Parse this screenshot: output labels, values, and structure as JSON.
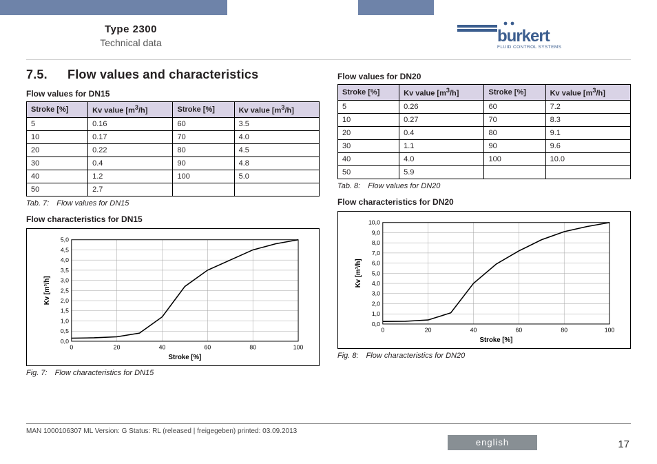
{
  "header": {
    "type_line": "Type 2300",
    "sub_line": "Technical data",
    "logo_text": "burkert",
    "logo_tagline": "FLUID CONTROL SYSTEMS",
    "logo_color": "#3c5e8f",
    "topbar_color": "#6e83a9"
  },
  "section": {
    "number": "7.5.",
    "title": "Flow values and characteristics"
  },
  "left": {
    "table_title": "Flow values for DN15",
    "headers": [
      "Stroke [%]",
      "Kv value [m³/h]",
      "Stroke [%]",
      "Kv value [m³/h]"
    ],
    "rows": [
      [
        "5",
        "0.16",
        "60",
        "3.5"
      ],
      [
        "10",
        "0.17",
        "70",
        "4.0"
      ],
      [
        "20",
        "0.22",
        "80",
        "4.5"
      ],
      [
        "30",
        "0.4",
        "90",
        "4.8"
      ],
      [
        "40",
        "1.2",
        "100",
        "5.0"
      ],
      [
        "50",
        "2.7",
        "",
        ""
      ]
    ],
    "table_caption": "Tab. 7: Flow values for DN15",
    "chart_title": "Flow characteristics for DN15",
    "chart": {
      "type": "line",
      "xlabel": "Stroke [%]",
      "ylabel": "Kv [m³/h]",
      "xlim": [
        0,
        100
      ],
      "xtick_step": 20,
      "ylim": [
        0,
        5.0
      ],
      "ytick_step": 0.5,
      "y_tick_labels": [
        "0,0",
        "0,5",
        "1,0",
        "1,5",
        "2,0",
        "2,5",
        "3,0",
        "3,5",
        "4,0",
        "4,5",
        "5,0"
      ],
      "x_tick_labels": [
        "0",
        "20",
        "40",
        "60",
        "80",
        "100"
      ],
      "series": {
        "x": [
          0,
          5,
          10,
          20,
          30,
          40,
          50,
          60,
          70,
          80,
          90,
          100
        ],
        "y": [
          0.15,
          0.16,
          0.17,
          0.22,
          0.4,
          1.2,
          2.7,
          3.5,
          4.0,
          4.5,
          4.8,
          5.0
        ]
      },
      "line_color": "#000000",
      "line_width": 1.6,
      "grid_color": "#a0a0a0",
      "background_color": "#ffffff",
      "label_fontsize": 10
    },
    "chart_caption": "Fig. 7: Flow characteristics for DN15"
  },
  "right": {
    "table_title": "Flow values for DN20",
    "headers": [
      "Stroke [%]",
      "Kv value [m³/h]",
      "Stroke [%]",
      "Kv value [m³/h]"
    ],
    "rows": [
      [
        "5",
        "0.26",
        "60",
        "7.2"
      ],
      [
        "10",
        "0.27",
        "70",
        "8.3"
      ],
      [
        "20",
        "0.4",
        "80",
        "9.1"
      ],
      [
        "30",
        "1.1",
        "90",
        "9.6"
      ],
      [
        "40",
        "4.0",
        "100",
        "10.0"
      ],
      [
        "50",
        "5.9",
        "",
        ""
      ]
    ],
    "table_caption": "Tab. 8: Flow values for DN20",
    "chart_title": "Flow characteristics for DN20",
    "chart": {
      "type": "line",
      "xlabel": "Stroke [%]",
      "ylabel": "Kv [m³/h]",
      "xlim": [
        0,
        100
      ],
      "xtick_step": 20,
      "ylim": [
        0,
        10.0
      ],
      "ytick_step": 1.0,
      "y_tick_labels": [
        "0,0",
        "1,0",
        "2,0",
        "3,0",
        "4,0",
        "5,0",
        "6,0",
        "7,0",
        "8,0",
        "9,0",
        "10,0"
      ],
      "x_tick_labels": [
        "0",
        "20",
        "40",
        "60",
        "80",
        "100"
      ],
      "series": {
        "x": [
          0,
          5,
          10,
          20,
          30,
          40,
          50,
          60,
          70,
          80,
          90,
          100
        ],
        "y": [
          0.25,
          0.26,
          0.27,
          0.4,
          1.1,
          4.0,
          5.9,
          7.2,
          8.3,
          9.1,
          9.6,
          10.0
        ]
      },
      "line_color": "#000000",
      "line_width": 1.6,
      "grid_color": "#a0a0a0",
      "background_color": "#ffffff",
      "label_fontsize": 10
    },
    "chart_caption": "Fig. 8: Flow characteristics for DN20"
  },
  "footer": {
    "meta": "MAN 1000106307 ML Version: G Status: RL (released | freigegeben) printed: 03.09.2013",
    "language": "english",
    "page": "17"
  },
  "colors": {
    "header_cell": "#d9d3e6",
    "border": "#000000",
    "lang_bar": "#888f94"
  }
}
